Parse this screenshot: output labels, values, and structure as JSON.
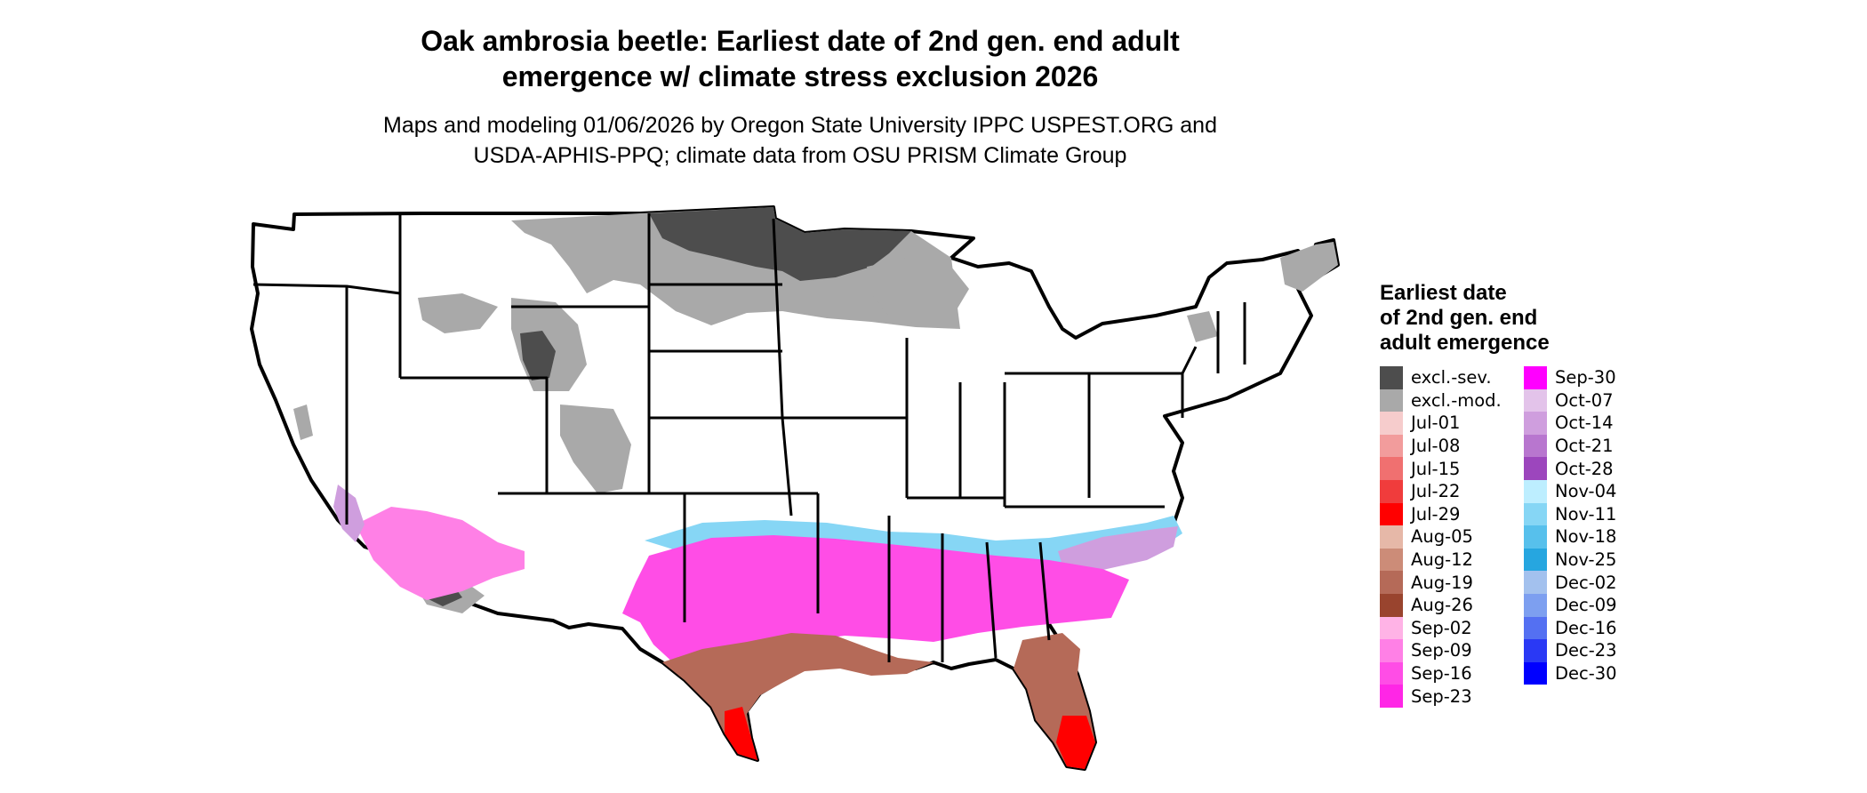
{
  "title_lines": [
    "Oak ambrosia beetle: Earliest date of 2nd gen. end adult",
    "emergence w/ climate stress exclusion 2026"
  ],
  "subtitle_lines": [
    "Maps and modeling 01/06/2026 by Oregon State University IPPC USPEST.ORG and",
    "USDA-APHIS-PPQ; climate data from OSU PRISM Climate Group"
  ],
  "map": {
    "region": "Conterminous United States",
    "colors": {
      "land": "#ffffff",
      "border": "#000000"
    }
  },
  "legend": {
    "title_lines": [
      "Earliest date",
      "of 2nd gen. end",
      "adult emergence"
    ],
    "columns": [
      [
        {
          "label": "excl.-sev.",
          "color": "#4d4d4d"
        },
        {
          "label": "excl.-mod.",
          "color": "#a9a9a9"
        },
        {
          "label": "Jul-01",
          "color": "#f6cccc"
        },
        {
          "label": "Jul-08",
          "color": "#f29c9c"
        },
        {
          "label": "Jul-15",
          "color": "#f07070"
        },
        {
          "label": "Jul-22",
          "color": "#f03c3c"
        },
        {
          "label": "Jul-29",
          "color": "#ff0000"
        },
        {
          "label": "Aug-05",
          "color": "#e6b8a8"
        },
        {
          "label": "Aug-12",
          "color": "#cc8c78"
        },
        {
          "label": "Aug-19",
          "color": "#b56a58"
        },
        {
          "label": "Aug-26",
          "color": "#99442e"
        },
        {
          "label": "Sep-02",
          "color": "#ffb3e6"
        },
        {
          "label": "Sep-09",
          "color": "#ff80e6"
        },
        {
          "label": "Sep-16",
          "color": "#ff4de6"
        },
        {
          "label": "Sep-23",
          "color": "#ff26e6"
        }
      ],
      [
        {
          "label": "Sep-30",
          "color": "#ff00ff"
        },
        {
          "label": "Oct-07",
          "color": "#e3c3ea"
        },
        {
          "label": "Oct-14",
          "color": "#cf9ede"
        },
        {
          "label": "Oct-21",
          "color": "#b876cf"
        },
        {
          "label": "Oct-28",
          "color": "#9c46bd"
        },
        {
          "label": "Nov-04",
          "color": "#bdeeff"
        },
        {
          "label": "Nov-11",
          "color": "#86d6f5"
        },
        {
          "label": "Nov-18",
          "color": "#57c0ec"
        },
        {
          "label": "Nov-25",
          "color": "#26a6e0"
        },
        {
          "label": "Dec-02",
          "color": "#a3c1ee"
        },
        {
          "label": "Dec-09",
          "color": "#7d9ff0"
        },
        {
          "label": "Dec-16",
          "color": "#5470f2"
        },
        {
          "label": "Dec-23",
          "color": "#2a39f5"
        },
        {
          "label": "Dec-30",
          "color": "#0000ff"
        }
      ]
    ]
  }
}
